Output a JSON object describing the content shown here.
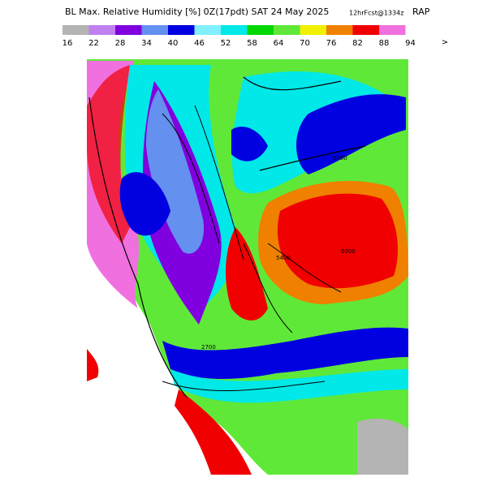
{
  "header": {
    "title": "BL Max. Relative Humidity [%] 0Z(17pdt) SAT 24 May 2025",
    "forecast": "12hrFcst@1334z",
    "model": "RAP"
  },
  "legend": {
    "labels": [
      "16",
      "22",
      "28",
      "34",
      "40",
      "46",
      "52",
      "58",
      "64",
      "70",
      "76",
      "82",
      "88",
      "94"
    ],
    "more": ">",
    "colors": [
      "#b4b4b4",
      "#c080f0",
      "#8000e0",
      "#6490f0",
      "#0000e0",
      "#80f0ff",
      "#00e8e8",
      "#00d800",
      "#60e838",
      "#f0f000",
      "#f08000",
      "#f00000",
      "#f070e0"
    ]
  },
  "map": {
    "contour_labels": [
      "2700",
      "6000",
      "5400",
      "6000"
    ]
  }
}
